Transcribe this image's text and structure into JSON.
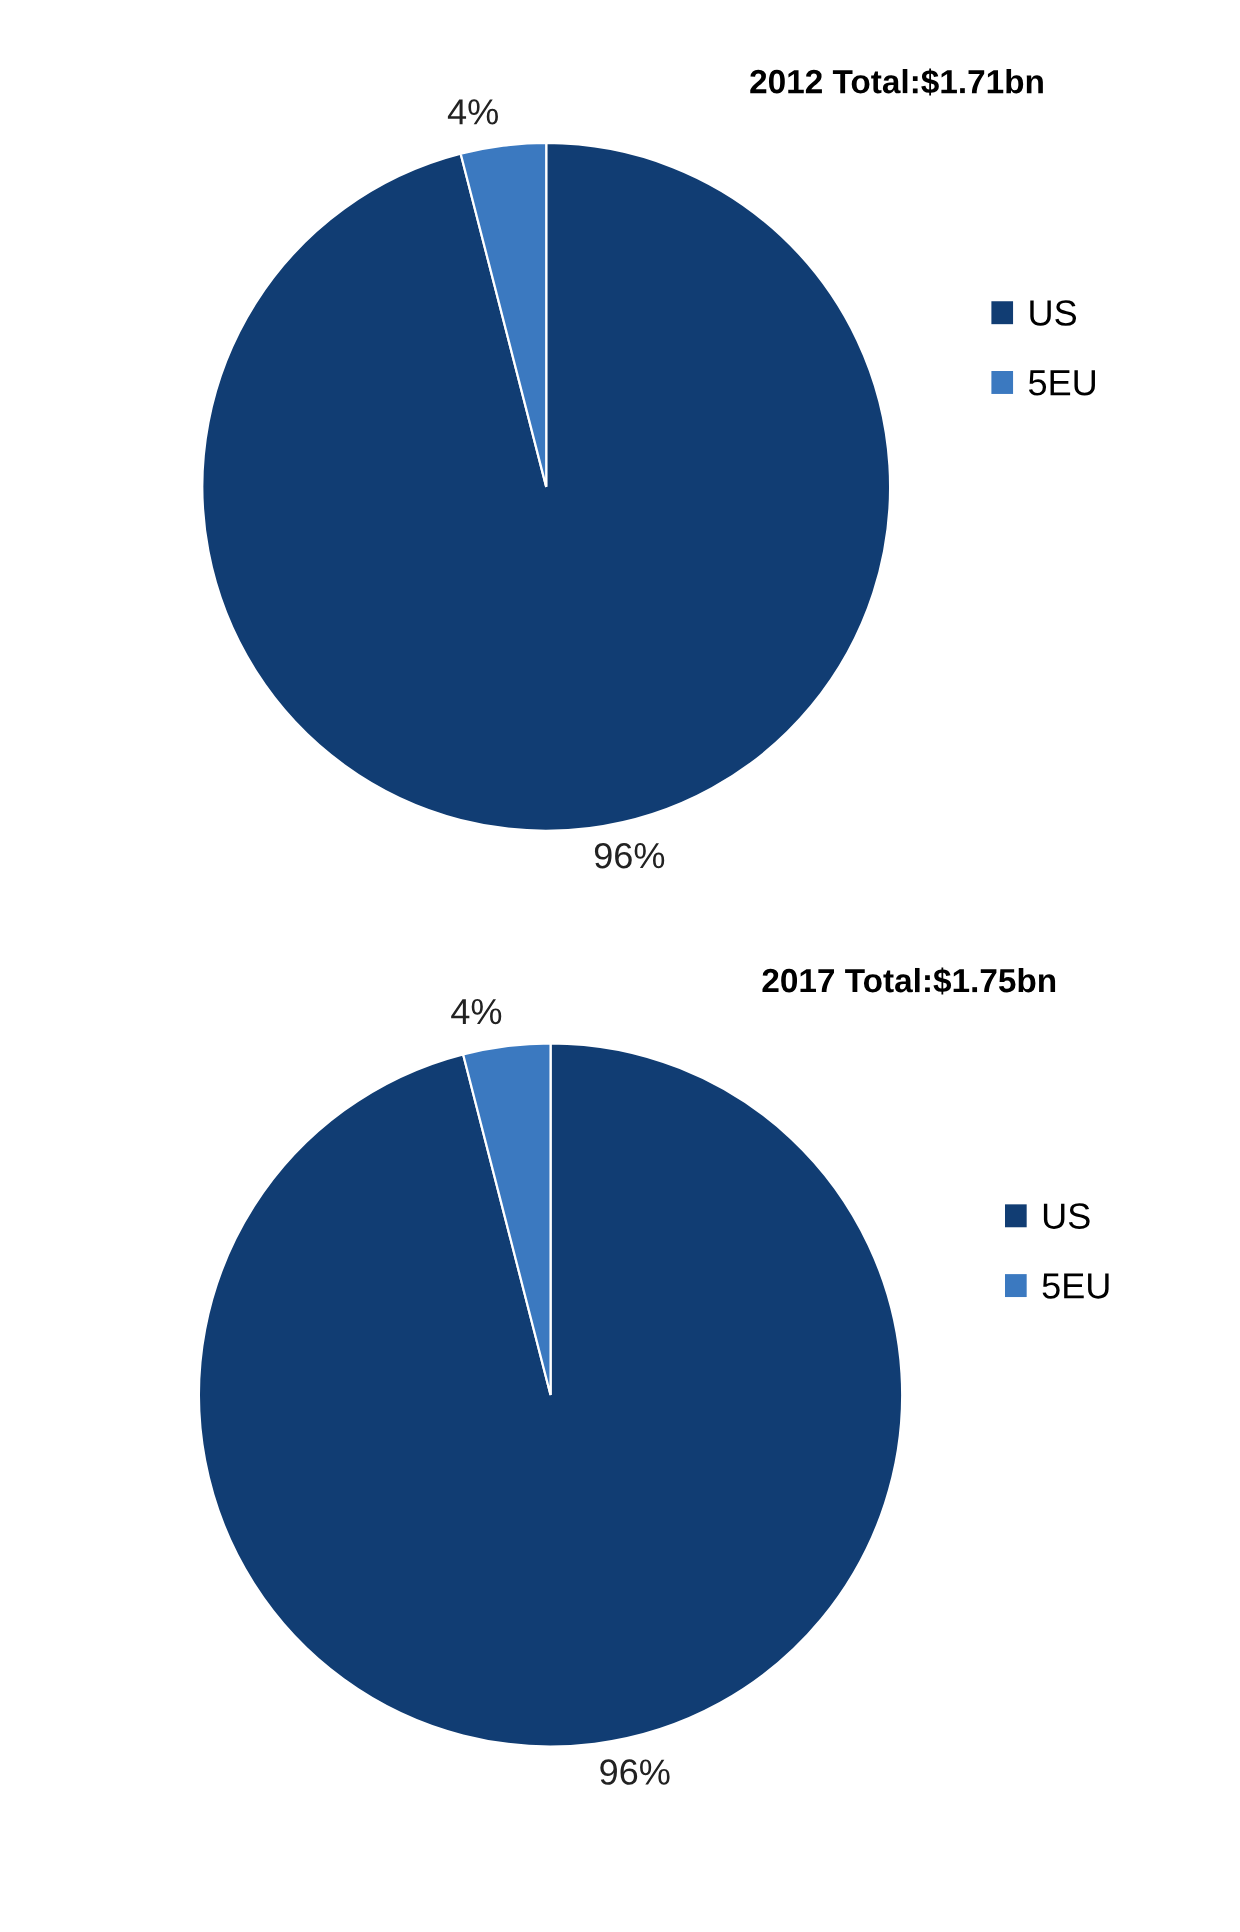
{
  "chart_data": [
    {
      "type": "pie",
      "title": "2012 Total:$1.71bn",
      "categories": [
        "US",
        "5EU"
      ],
      "values": [
        96,
        4
      ],
      "colors": [
        "#113d73",
        "#3b79c0"
      ],
      "legend": "right",
      "value_labels": [
        "96%",
        "4%"
      ]
    },
    {
      "type": "pie",
      "title": "2017 Total:$1.75bn",
      "categories": [
        "US",
        "5EU"
      ],
      "values": [
        96,
        4
      ],
      "colors": [
        "#113d73",
        "#3b79c0"
      ],
      "legend": "right",
      "value_labels": [
        "96%",
        "4%"
      ]
    }
  ]
}
